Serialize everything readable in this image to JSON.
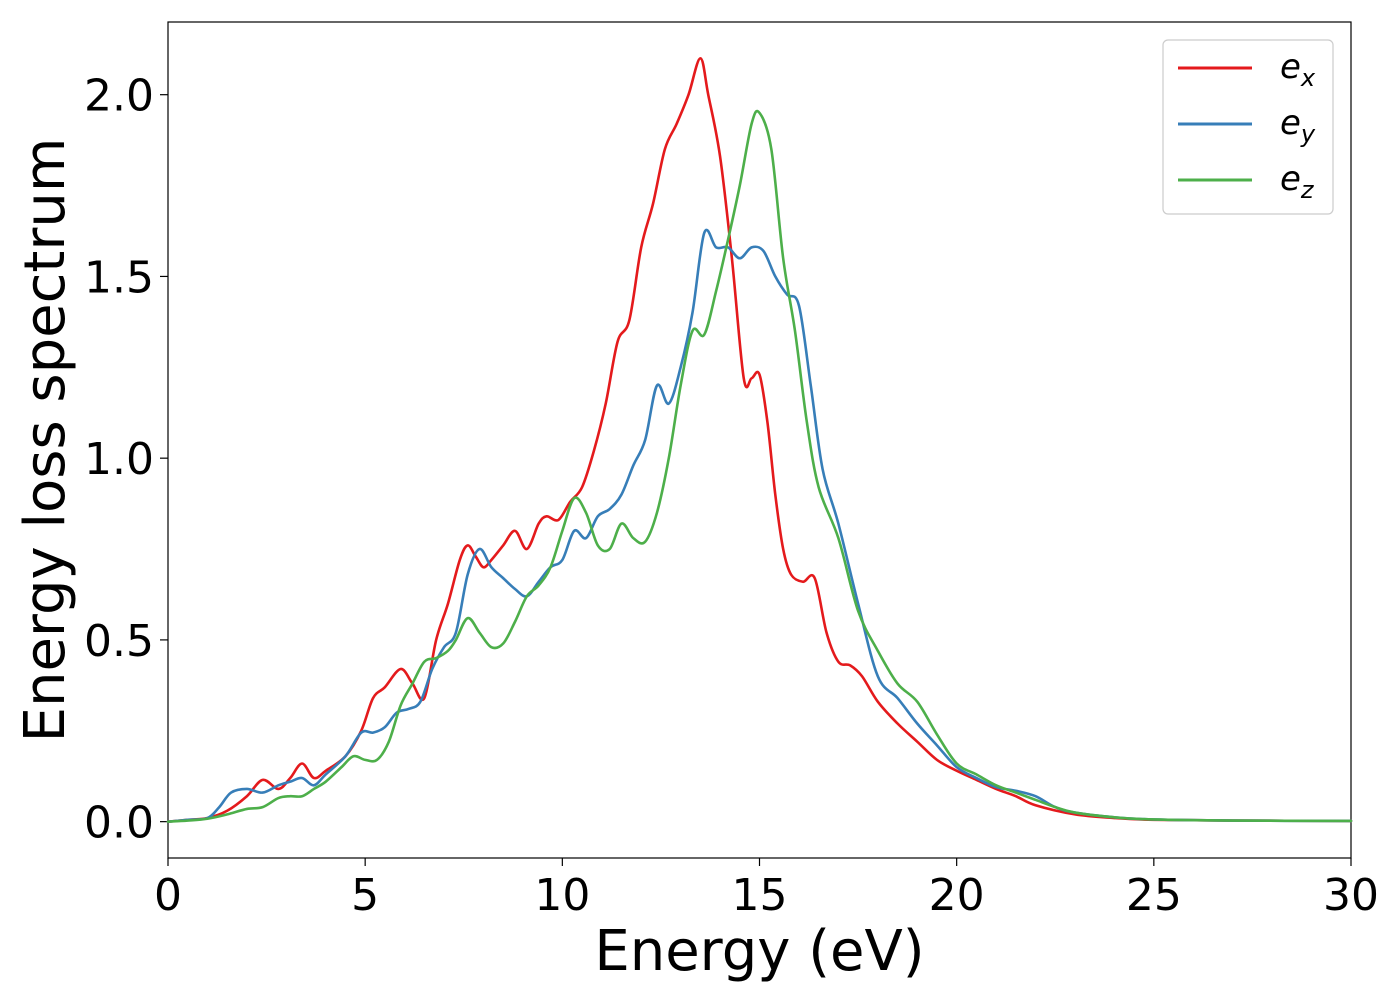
{
  "chart_data": {
    "type": "line",
    "title": "",
    "xlabel": "Energy (eV)",
    "ylabel": "Energy loss spectrum",
    "xlim": [
      0,
      30
    ],
    "ylim": [
      -0.1,
      2.2
    ],
    "xticks": [
      0,
      5,
      10,
      15,
      20,
      25,
      30
    ],
    "xtick_labels": [
      "0",
      "5",
      "10",
      "15",
      "20",
      "25",
      "30"
    ],
    "yticks": [
      0.0,
      0.5,
      1.0,
      1.5,
      2.0
    ],
    "ytick_labels": [
      "0.0",
      "0.5",
      "1.0",
      "1.5",
      "2.0"
    ],
    "grid": false,
    "legend_position": "top-right",
    "series": [
      {
        "name": "e",
        "name_sub": "x",
        "color": "#e41a1c",
        "x": [
          0,
          0.5,
          1.0,
          1.5,
          2.0,
          2.4,
          2.8,
          3.1,
          3.4,
          3.7,
          4.0,
          4.5,
          4.9,
          5.2,
          5.5,
          5.9,
          6.2,
          6.5,
          6.8,
          7.1,
          7.4,
          7.6,
          7.8,
          8.0,
          8.2,
          8.5,
          8.8,
          9.1,
          9.4,
          9.6,
          9.9,
          10.2,
          10.5,
          10.8,
          11.1,
          11.4,
          11.7,
          12.0,
          12.3,
          12.6,
          12.9,
          13.2,
          13.5,
          13.7,
          14.0,
          14.3,
          14.6,
          14.8,
          15.0,
          15.2,
          15.4,
          15.6,
          15.8,
          16.1,
          16.4,
          16.7,
          17.0,
          17.3,
          17.6,
          18.0,
          18.5,
          19.0,
          19.5,
          20.0,
          20.5,
          21.0,
          21.5,
          22.0,
          23.0,
          24.0,
          25.0,
          27.0,
          30.0
        ],
        "y": [
          0.0,
          0.005,
          0.01,
          0.03,
          0.07,
          0.115,
          0.09,
          0.12,
          0.16,
          0.12,
          0.14,
          0.18,
          0.25,
          0.34,
          0.37,
          0.42,
          0.38,
          0.34,
          0.5,
          0.6,
          0.72,
          0.76,
          0.73,
          0.7,
          0.72,
          0.76,
          0.8,
          0.75,
          0.82,
          0.84,
          0.83,
          0.88,
          0.92,
          1.02,
          1.15,
          1.32,
          1.38,
          1.58,
          1.7,
          1.85,
          1.92,
          2.0,
          2.1,
          2.0,
          1.83,
          1.55,
          1.22,
          1.22,
          1.23,
          1.1,
          0.9,
          0.75,
          0.68,
          0.66,
          0.67,
          0.52,
          0.44,
          0.43,
          0.4,
          0.33,
          0.27,
          0.22,
          0.17,
          0.14,
          0.115,
          0.09,
          0.07,
          0.045,
          0.02,
          0.01,
          0.005,
          0.003,
          0.002
        ]
      },
      {
        "name": "e",
        "name_sub": "y",
        "color": "#377eb8",
        "x": [
          0,
          0.5,
          1.0,
          1.3,
          1.6,
          2.0,
          2.4,
          2.8,
          3.1,
          3.4,
          3.7,
          4.0,
          4.5,
          4.9,
          5.2,
          5.5,
          5.8,
          6.1,
          6.4,
          6.7,
          7.0,
          7.3,
          7.6,
          7.9,
          8.2,
          8.5,
          8.8,
          9.1,
          9.4,
          9.7,
          10.0,
          10.3,
          10.6,
          10.9,
          11.2,
          11.5,
          11.8,
          12.1,
          12.4,
          12.7,
          13.0,
          13.3,
          13.6,
          13.9,
          14.2,
          14.5,
          14.8,
          15.1,
          15.4,
          15.7,
          16.0,
          16.3,
          16.6,
          17.0,
          17.5,
          18.0,
          18.5,
          19.0,
          19.5,
          20.0,
          20.5,
          21.0,
          21.5,
          22.0,
          22.5,
          23.0,
          24.0,
          25.0,
          27.0,
          30.0
        ],
        "y": [
          0.0,
          0.005,
          0.01,
          0.04,
          0.08,
          0.09,
          0.08,
          0.1,
          0.11,
          0.12,
          0.1,
          0.13,
          0.18,
          0.245,
          0.245,
          0.26,
          0.3,
          0.31,
          0.33,
          0.42,
          0.48,
          0.52,
          0.68,
          0.75,
          0.7,
          0.67,
          0.64,
          0.62,
          0.66,
          0.7,
          0.72,
          0.8,
          0.78,
          0.84,
          0.86,
          0.9,
          0.98,
          1.05,
          1.2,
          1.15,
          1.25,
          1.4,
          1.62,
          1.58,
          1.58,
          1.55,
          1.58,
          1.57,
          1.5,
          1.45,
          1.42,
          1.2,
          0.97,
          0.82,
          0.6,
          0.4,
          0.34,
          0.27,
          0.21,
          0.15,
          0.12,
          0.095,
          0.085,
          0.07,
          0.04,
          0.025,
          0.012,
          0.006,
          0.003,
          0.002
        ]
      },
      {
        "name": "e",
        "name_sub": "z",
        "color": "#4daf4a",
        "x": [
          0,
          0.5,
          1.0,
          1.5,
          2.0,
          2.4,
          2.8,
          3.1,
          3.4,
          3.7,
          4.0,
          4.4,
          4.7,
          5.0,
          5.3,
          5.6,
          5.9,
          6.2,
          6.5,
          6.8,
          7.1,
          7.3,
          7.6,
          7.9,
          8.2,
          8.5,
          8.8,
          9.1,
          9.4,
          9.7,
          10.0,
          10.3,
          10.6,
          10.9,
          11.2,
          11.5,
          11.8,
          12.1,
          12.4,
          12.7,
          13.0,
          13.3,
          13.6,
          13.9,
          14.2,
          14.5,
          14.8,
          15.0,
          15.3,
          15.6,
          15.9,
          16.2,
          16.5,
          17.0,
          17.5,
          18.0,
          18.5,
          19.0,
          19.5,
          20.0,
          20.5,
          21.0,
          21.5,
          22.0,
          22.5,
          23.0,
          24.0,
          25.0,
          27.0,
          30.0
        ],
        "y": [
          0.0,
          0.003,
          0.008,
          0.02,
          0.035,
          0.04,
          0.065,
          0.07,
          0.07,
          0.09,
          0.11,
          0.15,
          0.18,
          0.17,
          0.17,
          0.22,
          0.32,
          0.38,
          0.44,
          0.45,
          0.47,
          0.5,
          0.56,
          0.52,
          0.48,
          0.49,
          0.55,
          0.62,
          0.65,
          0.7,
          0.8,
          0.89,
          0.85,
          0.76,
          0.75,
          0.82,
          0.78,
          0.77,
          0.85,
          1.0,
          1.2,
          1.35,
          1.34,
          1.46,
          1.6,
          1.75,
          1.92,
          1.95,
          1.85,
          1.55,
          1.35,
          1.1,
          0.92,
          0.78,
          0.58,
          0.47,
          0.38,
          0.33,
          0.24,
          0.16,
          0.13,
          0.1,
          0.08,
          0.06,
          0.04,
          0.025,
          0.012,
          0.006,
          0.003,
          0.002
        ]
      }
    ]
  }
}
